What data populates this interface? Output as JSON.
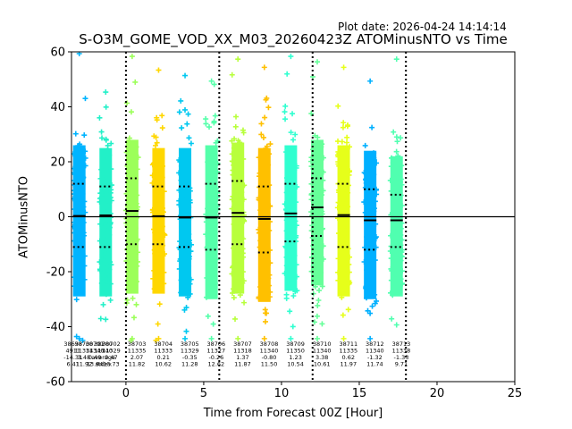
{
  "plot_date": "Plot date: 2026-04-24 14:14:14",
  "chart_data": {
    "type": "scatter",
    "title": "S-O3M_GOME_VOD_XX_M03_20260423Z ATOMinusNTO vs Time",
    "xlabel": "Time from Forecast 00Z [Hour]",
    "ylabel": "ATOMinusNTO",
    "xlim": [
      -3.5,
      25
    ],
    "ylim": [
      -60,
      60
    ],
    "xticks": [
      "0",
      "5",
      "10",
      "15",
      "20",
      "25"
    ],
    "yticks": [
      "-60",
      "-40",
      "-20",
      "0",
      "20",
      "40",
      "60"
    ],
    "grid": false,
    "reference_line_y": 0,
    "vertical_dotted_lines_x": [
      0,
      6,
      12,
      18
    ],
    "bins": [
      {
        "x": -3.0,
        "mean": 0.3,
        "std_upper": 12,
        "std_lower": -11,
        "top": 60,
        "bottom": -45,
        "color": "#00b4ff"
      },
      {
        "x": -1.3,
        "mean": 0.5,
        "std_upper": 11,
        "std_lower": -11,
        "top": 46,
        "bottom": -38,
        "color": "#22f0c8"
      },
      {
        "x": 0.4,
        "mean": 2.1,
        "std_upper": 14,
        "std_lower": -10,
        "top": 59,
        "bottom": -45,
        "color": "#9cff5a"
      },
      {
        "x": 2.1,
        "mean": 0.2,
        "std_upper": 11,
        "std_lower": -10,
        "top": 54,
        "bottom": -45,
        "color": "#ffd700"
      },
      {
        "x": 3.8,
        "mean": -0.3,
        "std_upper": 11,
        "std_lower": -11,
        "top": 52,
        "bottom": -45,
        "color": "#00c8f0"
      },
      {
        "x": 5.5,
        "mean": -0.3,
        "std_upper": 12,
        "std_lower": -12,
        "top": 50,
        "bottom": -45,
        "color": "#55ffaa"
      },
      {
        "x": 7.2,
        "mean": 1.4,
        "std_upper": 13,
        "std_lower": -10,
        "top": 58,
        "bottom": -45,
        "color": "#b8ff3c"
      },
      {
        "x": 8.9,
        "mean": -0.8,
        "std_upper": 11,
        "std_lower": -13,
        "top": 55,
        "bottom": -45,
        "color": "#ffc000"
      },
      {
        "x": 10.6,
        "mean": 1.2,
        "std_upper": 12,
        "std_lower": -9,
        "top": 59,
        "bottom": -45,
        "color": "#30ffd0"
      },
      {
        "x": 12.3,
        "mean": 3.4,
        "std_upper": 14,
        "std_lower": -7,
        "top": 57,
        "bottom": -45,
        "color": "#66ff99"
      },
      {
        "x": 14.0,
        "mean": 0.6,
        "std_upper": 12,
        "std_lower": -11,
        "top": 55,
        "bottom": -45,
        "color": "#e6ff1a"
      },
      {
        "x": 15.7,
        "mean": -1.3,
        "std_upper": 10,
        "std_lower": -12,
        "top": 50,
        "bottom": -45,
        "color": "#00b0ff"
      },
      {
        "x": 17.4,
        "mean": -1.3,
        "std_upper": 8,
        "std_lower": -11,
        "top": 58,
        "bottom": -40,
        "color": "#50ffb0"
      }
    ],
    "stat_labels": [
      {
        "x": -3.4,
        "lines": [
          "38698",
          "4911",
          "-14.31",
          "6.41"
        ]
      },
      {
        "x": -2.7,
        "lines": [
          "38700",
          "11334",
          "3.48",
          "11.92"
        ]
      },
      {
        "x": -2.0,
        "lines": [
          "38701",
          "11346",
          "0.49",
          "13.84"
        ]
      },
      {
        "x": -1.45,
        "lines": [
          "38700",
          "11340",
          "average",
          "stdev"
        ]
      },
      {
        "x": -0.95,
        "lines": [
          "38702",
          "11329",
          "0.47",
          "10.73"
        ]
      },
      {
        "x": 0.7,
        "lines": [
          "38703",
          "11335",
          "2.07",
          "11.82"
        ]
      },
      {
        "x": 2.4,
        "lines": [
          "38704",
          "11333",
          "0.21",
          "10.62"
        ]
      },
      {
        "x": 4.1,
        "lines": [
          "38705",
          "11329",
          "-0.35",
          "11.28"
        ]
      },
      {
        "x": 5.8,
        "lines": [
          "38706",
          "11327",
          "-0.26",
          "12.62"
        ]
      },
      {
        "x": 7.5,
        "lines": [
          "38707",
          "11318",
          "1.37",
          "11.87"
        ]
      },
      {
        "x": 9.2,
        "lines": [
          "38708",
          "11340",
          "-0.80",
          "11.50"
        ]
      },
      {
        "x": 10.9,
        "lines": [
          "38709",
          "11350",
          "1.23",
          "10.54"
        ]
      },
      {
        "x": 12.6,
        "lines": [
          "38710",
          "11340",
          "3.38",
          "10.61"
        ]
      },
      {
        "x": 14.3,
        "lines": [
          "38711",
          "11335",
          "0.62",
          "11.97"
        ]
      },
      {
        "x": 16.0,
        "lines": [
          "38712",
          "11340",
          "-1.32",
          "11.74"
        ]
      },
      {
        "x": 17.7,
        "lines": [
          "38713",
          "11338",
          "-1.33",
          "9.71"
        ]
      }
    ]
  }
}
